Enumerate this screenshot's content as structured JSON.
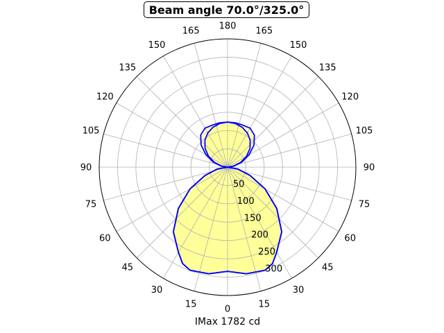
{
  "chart_data": {
    "type": "polar",
    "title": "Beam angle 70.0°/325.0°",
    "xlabel": "IMax 1782 cd",
    "angle_tick_labels": [
      {
        "angle": 0,
        "label": "0"
      },
      {
        "angle": 15,
        "label": "15"
      },
      {
        "angle": 30,
        "label": "30"
      },
      {
        "angle": 45,
        "label": "45"
      },
      {
        "angle": 60,
        "label": "60"
      },
      {
        "angle": 75,
        "label": "75"
      },
      {
        "angle": 90,
        "label": "90"
      },
      {
        "angle": 105,
        "label": "105"
      },
      {
        "angle": 120,
        "label": "120"
      },
      {
        "angle": 135,
        "label": "135"
      },
      {
        "angle": 150,
        "label": "150"
      },
      {
        "angle": 165,
        "label": "165"
      },
      {
        "angle": 180,
        "label": "180"
      },
      {
        "angle": -165,
        "label": "165"
      },
      {
        "angle": -150,
        "label": "150"
      },
      {
        "angle": -135,
        "label": "135"
      },
      {
        "angle": -120,
        "label": "120"
      },
      {
        "angle": -105,
        "label": "105"
      },
      {
        "angle": -90,
        "label": "90"
      },
      {
        "angle": -75,
        "label": "75"
      },
      {
        "angle": -60,
        "label": "60"
      },
      {
        "angle": -45,
        "label": "45"
      },
      {
        "angle": -30,
        "label": "30"
      },
      {
        "angle": -15,
        "label": "15"
      }
    ],
    "radial_ticks": [
      50,
      100,
      150,
      200,
      250,
      300
    ],
    "rlim": [
      0,
      350
    ],
    "grid": true,
    "series": [
      {
        "curve": "C0-C180",
        "color": "#0000ff",
        "fill": "#ffff80",
        "points": [
          [
            0,
            284
          ],
          [
            10,
            295
          ],
          [
            20,
            299
          ],
          [
            25,
            290
          ],
          [
            30,
            268
          ],
          [
            40,
            230
          ],
          [
            50,
            175
          ],
          [
            60,
            118
          ],
          [
            70,
            65
          ],
          [
            80,
            28
          ],
          [
            90,
            0
          ],
          [
            100,
            18
          ],
          [
            110,
            42
          ],
          [
            120,
            68
          ],
          [
            130,
            94
          ],
          [
            140,
            114
          ],
          [
            150,
            123
          ],
          [
            160,
            122
          ],
          [
            170,
            123
          ],
          [
            180,
            123
          ],
          [
            -170,
            123
          ],
          [
            -160,
            122
          ],
          [
            -150,
            123
          ],
          [
            -140,
            114
          ],
          [
            -130,
            94
          ],
          [
            -120,
            68
          ],
          [
            -110,
            42
          ],
          [
            -100,
            18
          ],
          [
            -90,
            0
          ],
          [
            -80,
            28
          ],
          [
            -70,
            65
          ],
          [
            -60,
            118
          ],
          [
            -50,
            175
          ],
          [
            -40,
            230
          ],
          [
            -30,
            268
          ],
          [
            -25,
            290
          ],
          [
            -20,
            299
          ],
          [
            -10,
            295
          ],
          [
            0,
            284
          ]
        ]
      },
      {
        "curve": "C90-C270",
        "color": "#0000ff",
        "fill": "#ffff80",
        "points": [
          [
            0,
            284
          ],
          [
            10,
            295
          ],
          [
            20,
            299
          ],
          [
            25,
            290
          ],
          [
            30,
            268
          ],
          [
            40,
            230
          ],
          [
            50,
            175
          ],
          [
            60,
            118
          ],
          [
            70,
            65
          ],
          [
            80,
            28
          ],
          [
            90,
            0
          ],
          [
            100,
            16
          ],
          [
            110,
            38
          ],
          [
            120,
            60
          ],
          [
            130,
            80
          ],
          [
            140,
            96
          ],
          [
            150,
            108
          ],
          [
            160,
            116
          ],
          [
            170,
            121
          ],
          [
            180,
            123
          ],
          [
            -170,
            121
          ],
          [
            -160,
            116
          ],
          [
            -150,
            108
          ],
          [
            -140,
            96
          ],
          [
            -130,
            80
          ],
          [
            -120,
            60
          ],
          [
            -110,
            38
          ],
          [
            -100,
            16
          ],
          [
            -90,
            0
          ],
          [
            -80,
            28
          ],
          [
            -70,
            65
          ],
          [
            -60,
            118
          ],
          [
            -50,
            175
          ],
          [
            -40,
            230
          ],
          [
            -30,
            268
          ],
          [
            -25,
            290
          ],
          [
            -20,
            299
          ],
          [
            -10,
            295
          ],
          [
            0,
            284
          ]
        ]
      }
    ]
  }
}
